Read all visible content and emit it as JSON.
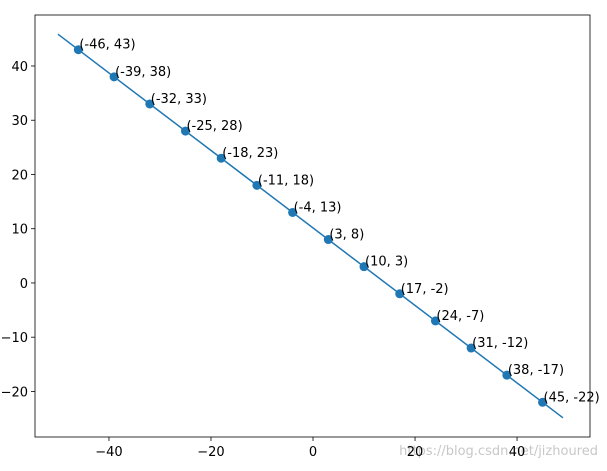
{
  "chart_data": {
    "type": "scatter",
    "x": [
      -46,
      -39,
      -32,
      -25,
      -18,
      -11,
      -4,
      3,
      10,
      17,
      24,
      31,
      38,
      45
    ],
    "series": [
      {
        "color": "#1f77b4",
        "values": [
          43,
          38,
          33,
          28,
          23,
          18,
          13,
          8,
          3,
          -2,
          -7,
          -12,
          -17,
          -22
        ]
      }
    ],
    "point_labels": [
      "(-46, 43)",
      "(-39, 38)",
      "(-32, 33)",
      "(-25, 28)",
      "(-18, 23)",
      "(-11, 18)",
      "(-4, 13)",
      "(3, 8)",
      "(10, 3)",
      "(17, -2)",
      "(24, -7)",
      "(31, -12)",
      "(38, -17)",
      "(45, -22)"
    ],
    "line": {
      "color": "#1f77b4",
      "x": [
        -50,
        49
      ],
      "y": [
        45.86,
        -24.86
      ]
    },
    "xlim": [
      -54.5,
      54.3
    ],
    "ylim": [
      -28.4,
      49.4
    ],
    "xticks": [
      {
        "value": -40,
        "label": "−40"
      },
      {
        "value": -20,
        "label": "−20"
      },
      0,
      20,
      40
    ],
    "yticks": [
      {
        "value": -20,
        "label": "−20"
      },
      {
        "value": -10,
        "label": "−10"
      },
      0,
      10,
      20,
      30,
      40
    ],
    "watermark": "https://blog.csdn.net/jizhoured"
  }
}
